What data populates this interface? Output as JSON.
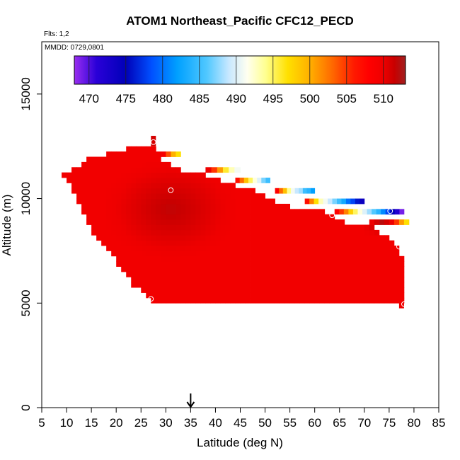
{
  "chart_data": {
    "type": "heatmap",
    "title": "ATOM1 Northeast_Pacific CFC12_PECD",
    "flights_label": "Flts: 1,2",
    "dates_label": "MMDD: 0729,0801",
    "xlabel": "Latitude (deg N)",
    "ylabel": "Altitude (m)",
    "xlim": [
      5,
      85
    ],
    "ylim": [
      0,
      17500
    ],
    "x_ticks": [
      5,
      10,
      15,
      20,
      25,
      30,
      35,
      40,
      45,
      50,
      55,
      60,
      65,
      70,
      75,
      80,
      85
    ],
    "y_ticks": [
      0,
      5000,
      10000,
      15000
    ],
    "colorbar": {
      "range": [
        468,
        513
      ],
      "ticks": [
        470,
        475,
        480,
        485,
        490,
        495,
        500,
        505,
        510
      ],
      "stops": [
        {
          "v": 468,
          "c": "#9a2ef0"
        },
        {
          "v": 471,
          "c": "#2a00d8"
        },
        {
          "v": 475,
          "c": "#0000b8"
        },
        {
          "v": 478.5,
          "c": "#0050ff"
        },
        {
          "v": 482,
          "c": "#00a0ff"
        },
        {
          "v": 486,
          "c": "#50c8ff"
        },
        {
          "v": 489,
          "c": "#c8e8ff"
        },
        {
          "v": 491.5,
          "c": "#fffff0"
        },
        {
          "v": 494,
          "c": "#ffff90"
        },
        {
          "v": 497,
          "c": "#ffe000"
        },
        {
          "v": 500,
          "c": "#ffb000"
        },
        {
          "v": 503,
          "c": "#ff6a00"
        },
        {
          "v": 506,
          "c": "#ff1a00"
        },
        {
          "v": 508,
          "c": "#ff0000"
        },
        {
          "v": 510,
          "c": "#ee0000"
        },
        {
          "v": 511.5,
          "c": "#c80000"
        },
        {
          "v": 513,
          "c": "#a02020"
        }
      ]
    },
    "arrow_latitude": 35,
    "field": {
      "x_step": 1,
      "y_step": 250,
      "bottom_altitude": 5000,
      "top_profile": [
        [
          8,
          11250
        ],
        [
          10,
          11250
        ],
        [
          14,
          12000
        ],
        [
          22,
          12500
        ],
        [
          28,
          12500
        ],
        [
          29,
          12000
        ],
        [
          33,
          11500
        ],
        [
          38,
          11250
        ],
        [
          44,
          10750
        ],
        [
          48,
          10500
        ],
        [
          52,
          10000
        ],
        [
          58,
          9500
        ],
        [
          62,
          9500
        ],
        [
          66,
          9000
        ],
        [
          68,
          8750
        ],
        [
          72,
          8750
        ],
        [
          76,
          8000
        ],
        [
          78,
          7000
        ]
      ],
      "left_profile": [
        [
          11250,
          8
        ],
        [
          10750,
          10
        ],
        [
          10250,
          11
        ],
        [
          9750,
          12
        ],
        [
          9250,
          13
        ],
        [
          8750,
          14
        ],
        [
          8250,
          15
        ],
        [
          7750,
          17
        ],
        [
          7250,
          19
        ],
        [
          6750,
          20
        ],
        [
          6250,
          22
        ],
        [
          5750,
          23
        ],
        [
          5250,
          26
        ],
        [
          5000,
          27
        ]
      ],
      "high_band": [
        {
          "lat": 27.5,
          "bottom": 12500,
          "top": 13000,
          "v": 511
        },
        {
          "lat": 77.5,
          "bottom": 4750,
          "top": 5000,
          "v": 510
        }
      ],
      "base_value": 509.5,
      "core_value": 511.8,
      "core_center": [
        31,
        9500
      ],
      "right_core_value": 511.5,
      "right_core_center": [
        73,
        8750
      ],
      "edge_gradient": [
        {
          "lat_start": 29,
          "lat_end": 31,
          "alt": 12000,
          "values": [
            509,
            504,
            500,
            497
          ]
        },
        {
          "lat_start": 38,
          "lat_end": 43,
          "alt": 11250,
          "values": [
            510,
            505,
            501,
            496,
            493,
            491
          ]
        },
        {
          "lat_start": 44,
          "lat_end": 49,
          "alt": 10750,
          "values": [
            507,
            503,
            499,
            495,
            492,
            490,
            487,
            485
          ]
        },
        {
          "lat_start": 52,
          "lat_end": 58,
          "alt": 10250,
          "values": [
            508,
            503,
            499,
            494,
            491,
            489,
            488,
            485,
            484,
            482
          ]
        },
        {
          "lat_start": 58,
          "lat_end": 68,
          "alt": 9750,
          "values": [
            507,
            502,
            497,
            493,
            491,
            489,
            487,
            485,
            483,
            480,
            478,
            476,
            474
          ]
        },
        {
          "lat_start": 64,
          "lat_end": 76,
          "alt": 9250,
          "values": [
            508,
            505,
            502,
            498,
            495,
            492,
            490,
            488,
            486,
            484,
            481,
            478,
            475,
            472,
            469
          ]
        },
        {
          "lat_start": 71,
          "lat_end": 77,
          "alt": 8750,
          "values": [
            510,
            511,
            512,
            511,
            510,
            505,
            501,
            497
          ]
        }
      ]
    },
    "points": [
      {
        "lat": 8,
        "alt": 11300
      },
      {
        "lat": 27.5,
        "alt": 12700
      },
      {
        "lat": 31,
        "alt": 10400
      },
      {
        "lat": 27,
        "alt": 5200
      },
      {
        "lat": 63.5,
        "alt": 9200
      },
      {
        "lat": 74,
        "alt": 8600
      },
      {
        "lat": 75.2,
        "alt": 9400
      },
      {
        "lat": 77,
        "alt": 7700
      },
      {
        "lat": 78,
        "alt": 4950
      }
    ]
  }
}
